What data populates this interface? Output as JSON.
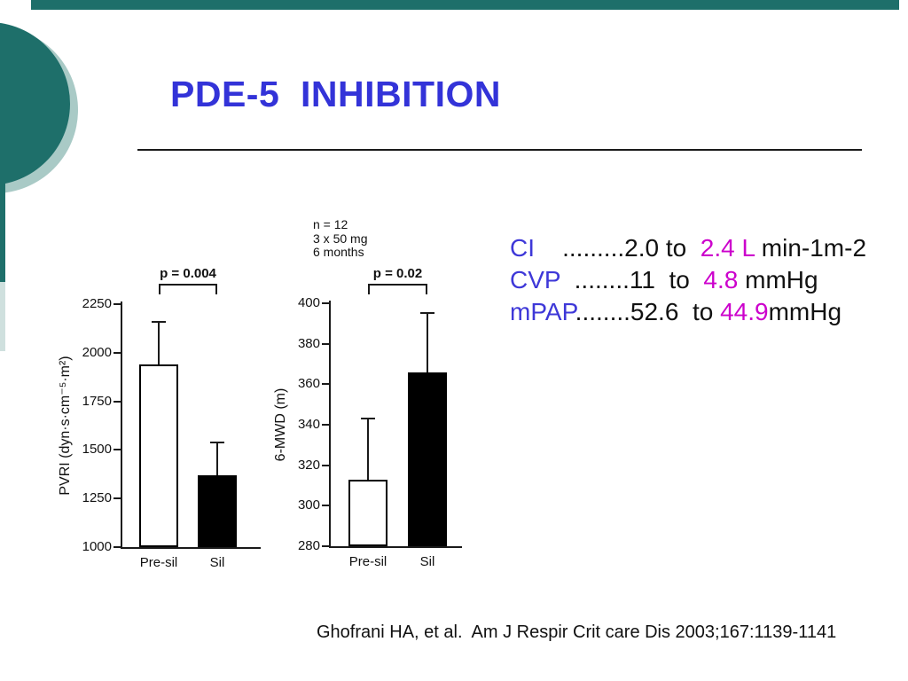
{
  "slide": {
    "title": "PDE-5  INHIBITION",
    "citation": "Ghofrani HA, et al.  Am J Respir Crit care Dis 2003;167:1139-1141"
  },
  "colors": {
    "accent_teal": "#1E6F6A",
    "accent_teal_light": "#A9CAC6",
    "strip_light": "#CFE0DE",
    "title_blue": "#3333D8",
    "label_blue": "#3E38D8",
    "highlight_magenta": "#CC00CC",
    "text_black": "#111111"
  },
  "results_text": {
    "lines": [
      {
        "segments": [
          {
            "t": "CI",
            "c": "blue"
          },
          {
            "t": "    .........2.0 to  ",
            "c": "black"
          },
          {
            "t": "2.4 L",
            "c": "magenta"
          },
          {
            "t": " min-1m-2",
            "c": "black"
          }
        ]
      },
      {
        "segments": [
          {
            "t": "CVP",
            "c": "blue"
          },
          {
            "t": "  ........11  to  ",
            "c": "black"
          },
          {
            "t": "4.8",
            "c": "magenta"
          },
          {
            "t": " mmHg",
            "c": "black"
          }
        ]
      },
      {
        "segments": [
          {
            "t": "mPAP",
            "c": "blue"
          },
          {
            "t": "........52.6  to ",
            "c": "black"
          },
          {
            "t": "44.9",
            "c": "magenta"
          },
          {
            "t": "mmHg",
            "c": "black"
          }
        ]
      }
    ]
  },
  "chart_data": [
    {
      "type": "bar",
      "title": "",
      "ylabel": "PVRI (dyn·s·cm⁻⁵·m²)",
      "xlabel": "",
      "categories": [
        "Pre-sil",
        "Sil"
      ],
      "values": [
        1940,
        1370
      ],
      "error_tops": [
        2160,
        1540
      ],
      "bar_colors": [
        "#ffffff",
        "#000000"
      ],
      "yticks": [
        2250,
        2000,
        1750,
        1500,
        1250,
        1000
      ],
      "ylim": [
        1000,
        2250
      ],
      "p_label": "p = 0.004",
      "grid": false,
      "legend": "none",
      "annotation": []
    },
    {
      "type": "bar",
      "title": "",
      "ylabel": "6-MWD (m)",
      "xlabel": "",
      "categories": [
        "Pre-sil",
        "Sil"
      ],
      "values": [
        313,
        366
      ],
      "error_tops": [
        343,
        395
      ],
      "bar_colors": [
        "#ffffff",
        "#000000"
      ],
      "yticks": [
        400,
        380,
        360,
        340,
        320,
        300,
        280
      ],
      "ylim": [
        280,
        400
      ],
      "p_label": "p = 0.02",
      "grid": false,
      "legend": "none",
      "annotation": [
        "n = 12",
        "3 x 50 mg",
        "6 months"
      ]
    }
  ]
}
